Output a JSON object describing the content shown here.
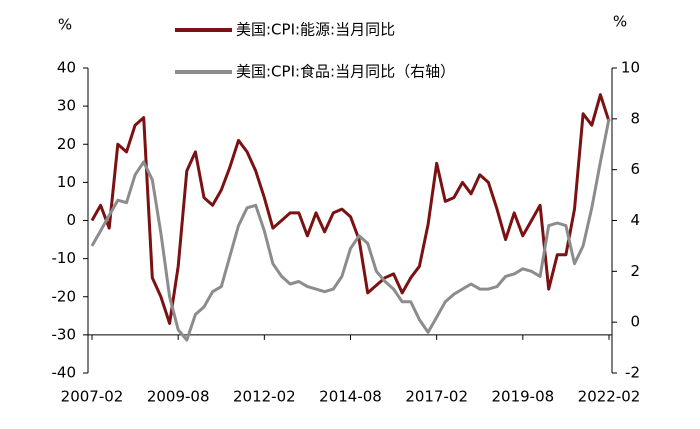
{
  "chart_data": {
    "type": "line",
    "y_unit": "%",
    "y2_unit": "%",
    "x": [
      "2007-02",
      "2007-05",
      "2007-08",
      "2007-11",
      "2008-02",
      "2008-05",
      "2008-08",
      "2008-11",
      "2009-02",
      "2009-05",
      "2009-08",
      "2009-11",
      "2010-02",
      "2010-05",
      "2010-08",
      "2010-11",
      "2011-02",
      "2011-05",
      "2011-08",
      "2011-11",
      "2012-02",
      "2012-05",
      "2012-08",
      "2012-11",
      "2013-02",
      "2013-05",
      "2013-08",
      "2013-11",
      "2014-02",
      "2014-05",
      "2014-08",
      "2014-11",
      "2015-02",
      "2015-05",
      "2015-08",
      "2015-11",
      "2016-02",
      "2016-05",
      "2016-08",
      "2016-11",
      "2017-02",
      "2017-05",
      "2017-08",
      "2017-11",
      "2018-02",
      "2018-05",
      "2018-08",
      "2018-11",
      "2019-02",
      "2019-05",
      "2019-08",
      "2019-11",
      "2020-02",
      "2020-05",
      "2020-08",
      "2020-11",
      "2021-02",
      "2021-05",
      "2021-08",
      "2021-11",
      "2022-02"
    ],
    "xlim": [
      "2007-02",
      "2022-02"
    ],
    "xticks": [
      "2007-02",
      "2009-08",
      "2012-02",
      "2014-08",
      "2017-02",
      "2019-08",
      "2022-02"
    ],
    "xaxis_crosses": -30,
    "ylim": [
      -40,
      40
    ],
    "yticks": [
      40,
      30,
      20,
      10,
      0,
      -10,
      -20,
      -30,
      -40
    ],
    "y2lim": [
      -2,
      10
    ],
    "y2ticks": [
      10,
      8,
      6,
      4,
      2,
      0,
      -2
    ],
    "series": [
      {
        "name": "美国:CPI:能源:当月同比",
        "color": "#7b1113",
        "values": [
          0,
          4,
          -2,
          20,
          18,
          25,
          27,
          -15,
          -20,
          -27,
          -12,
          13,
          18,
          6,
          4,
          8,
          14,
          21,
          18,
          13,
          6,
          -2,
          0,
          2,
          2,
          -4,
          2,
          -3,
          2,
          3,
          1,
          -5,
          -19,
          -17,
          -15,
          -14,
          -19,
          -15,
          -12,
          -1,
          15,
          5,
          6,
          10,
          7,
          12,
          10,
          3,
          -5,
          2,
          -4,
          0,
          4,
          -18,
          -9,
          -9,
          3,
          28,
          25,
          33,
          26
        ]
      },
      {
        "name": "美国:CPI:食品:当月同比（右轴）",
        "color": "#8c8c8c",
        "axis": "y2",
        "values": [
          3.0,
          3.6,
          4.2,
          4.8,
          4.7,
          5.8,
          6.3,
          5.6,
          3.5,
          1.0,
          -0.3,
          -0.7,
          0.3,
          0.6,
          1.2,
          1.4,
          2.6,
          3.8,
          4.5,
          4.6,
          3.6,
          2.3,
          1.8,
          1.5,
          1.6,
          1.4,
          1.3,
          1.2,
          1.3,
          1.8,
          2.9,
          3.4,
          3.1,
          2.0,
          1.6,
          1.3,
          0.8,
          0.8,
          0.1,
          -0.4,
          0.2,
          0.8,
          1.1,
          1.3,
          1.5,
          1.3,
          1.3,
          1.4,
          1.8,
          1.9,
          2.1,
          2.0,
          1.8,
          3.8,
          3.9,
          3.8,
          2.3,
          3.0,
          4.5,
          6.3,
          8.0
        ]
      }
    ]
  }
}
